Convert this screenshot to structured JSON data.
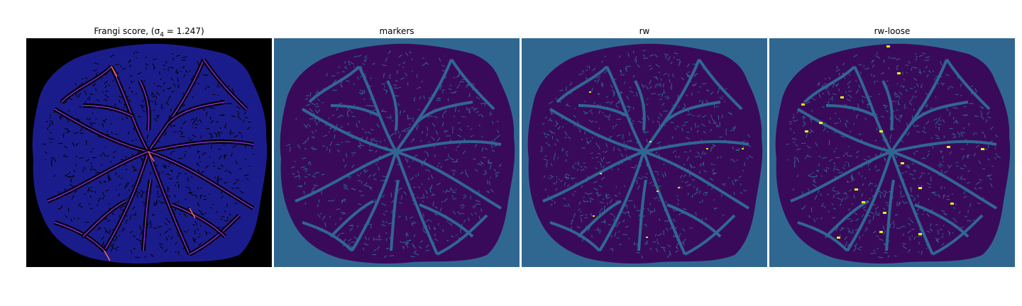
{
  "panels": [
    {
      "title": "Frangi score, ",
      "math": "(σ",
      "sub": "4",
      "math_tail": " = 1.247)",
      "colormap": "magma",
      "bg": "#000000",
      "fill": "#1b1c8c",
      "vessel": "#8a2be2",
      "highlight": "#ff6a3d"
    },
    {
      "title": "markers",
      "colormap": "viridis",
      "bg": "#306790",
      "fill": "#3a0a5a",
      "vessel": "#306790"
    },
    {
      "title": "rw",
      "colormap": "viridis",
      "bg": "#306790",
      "fill": "#3a0a5a",
      "vessel": "#306790",
      "highlight": "#d8e219"
    },
    {
      "title": "rw-loose",
      "colormap": "viridis",
      "bg": "#306790",
      "fill": "#3a0a5a",
      "vessel": "#306790",
      "highlight": "#e3f41c"
    }
  ]
}
